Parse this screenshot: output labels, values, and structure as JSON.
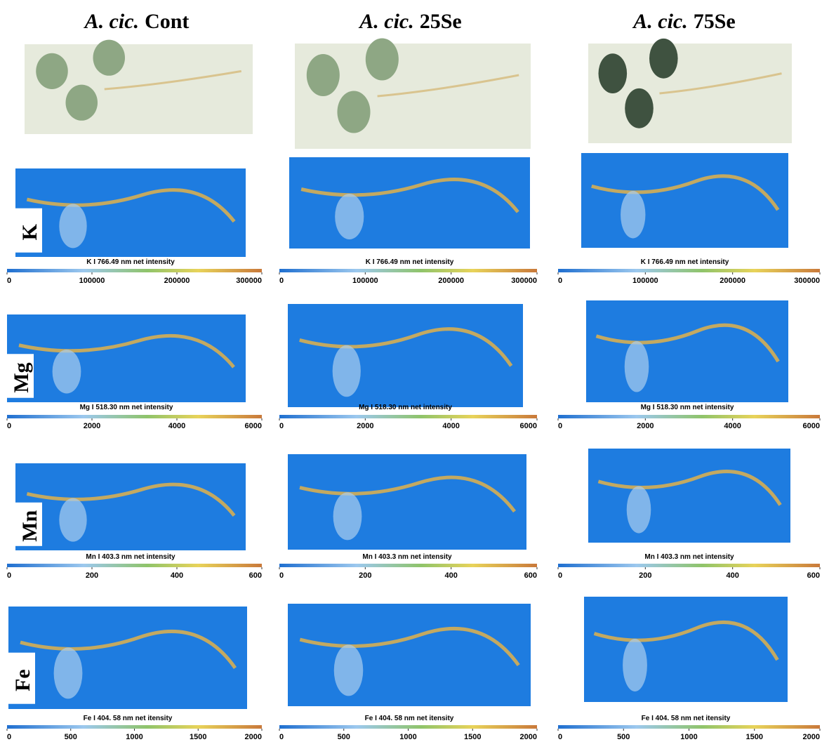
{
  "columns": [
    {
      "species": "A. cic.",
      "treatment": "Cont"
    },
    {
      "species": "A. cic.",
      "treatment": "25Se"
    },
    {
      "species": "A. cic.",
      "treatment": "75Se"
    }
  ],
  "rows": [
    {
      "element": "K",
      "caption": "K I 766.49 nm net intensity",
      "ticks": [
        0,
        100000,
        200000,
        300000
      ]
    },
    {
      "element": "Mg",
      "caption": "Mg I 518.30 nm net intensity",
      "ticks": [
        0,
        2000,
        4000,
        6000
      ]
    },
    {
      "element": "Mn",
      "caption": "Mn I 403.3 nm net intensity",
      "ticks": [
        0,
        200,
        400,
        600
      ]
    },
    {
      "element": "Fe",
      "caption": "Fe I 404. 58 nm net itensity",
      "ticks": [
        0,
        500,
        1000,
        1500,
        2000
      ]
    }
  ]
}
